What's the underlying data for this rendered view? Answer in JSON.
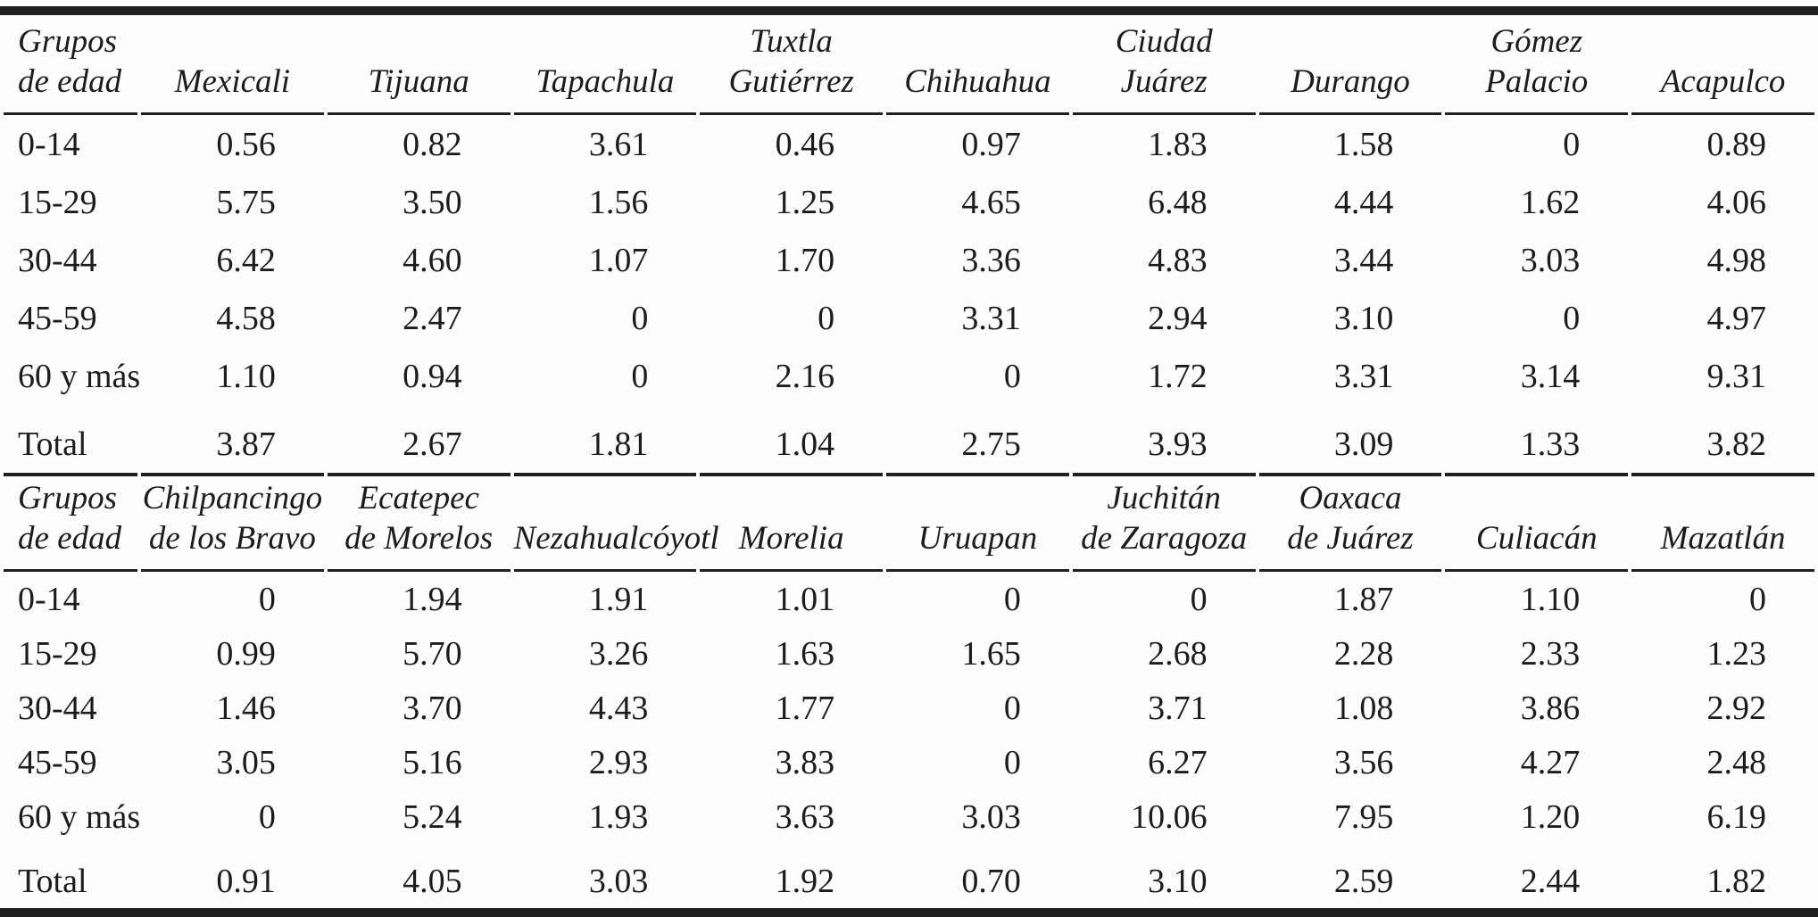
{
  "colors": {
    "ink": "#1c1c1c",
    "page_background": "#fdfdfd",
    "rule_color": "#202020"
  },
  "tables": [
    {
      "columns": [
        {
          "line1": "Grupos",
          "line2": "de edad"
        },
        {
          "line1": "",
          "line2": "Mexicali"
        },
        {
          "line1": "",
          "line2": "Tijuana"
        },
        {
          "line1": "",
          "line2": "Tapachula"
        },
        {
          "line1": "Tuxtla",
          "line2": "Gutiérrez"
        },
        {
          "line1": "",
          "line2": "Chihuahua"
        },
        {
          "line1": "Ciudad",
          "line2": "Juárez"
        },
        {
          "line1": "",
          "line2": "Durango"
        },
        {
          "line1": "Gómez",
          "line2": "Palacio"
        },
        {
          "line1": "",
          "line2": "Acapulco"
        }
      ],
      "rows": [
        {
          "label": "0-14",
          "total": false,
          "values": [
            "0.56",
            "0.82",
            "3.61",
            "0.46",
            "0.97",
            "1.83",
            "1.58",
            "0",
            "0.89"
          ]
        },
        {
          "label": "15-29",
          "total": false,
          "values": [
            "5.75",
            "3.50",
            "1.56",
            "1.25",
            "4.65",
            "6.48",
            "4.44",
            "1.62",
            "4.06"
          ]
        },
        {
          "label": "30-44",
          "total": false,
          "values": [
            "6.42",
            "4.60",
            "1.07",
            "1.70",
            "3.36",
            "4.83",
            "3.44",
            "3.03",
            "4.98"
          ]
        },
        {
          "label": "45-59",
          "total": false,
          "values": [
            "4.58",
            "2.47",
            "0",
            "0",
            "3.31",
            "2.94",
            "3.10",
            "0",
            "4.97"
          ]
        },
        {
          "label": "60 y más",
          "total": false,
          "values": [
            "1.10",
            "0.94",
            "0",
            "2.16",
            "0",
            "1.72",
            "3.31",
            "3.14",
            "9.31"
          ]
        },
        {
          "label": "Total",
          "total": true,
          "values": [
            "3.87",
            "2.67",
            "1.81",
            "1.04",
            "2.75",
            "3.93",
            "3.09",
            "1.33",
            "3.82"
          ]
        }
      ]
    },
    {
      "columns": [
        {
          "line1": "Grupos",
          "line2": "de edad"
        },
        {
          "line1": "Chilpancingo",
          "line2": "de los Bravo"
        },
        {
          "line1": "Ecatepec",
          "line2": "de Morelos"
        },
        {
          "line1": "",
          "line2": "Nezahualcóyotl"
        },
        {
          "line1": "",
          "line2": "Morelia"
        },
        {
          "line1": "",
          "line2": "Uruapan"
        },
        {
          "line1": "Juchitán",
          "line2": "de Zaragoza"
        },
        {
          "line1": "Oaxaca",
          "line2": "de Juárez"
        },
        {
          "line1": "",
          "line2": "Culiacán"
        },
        {
          "line1": "",
          "line2": "Mazatlán"
        }
      ],
      "rows": [
        {
          "label": "0-14",
          "total": false,
          "values": [
            "0",
            "1.94",
            "1.91",
            "1.01",
            "0",
            "0",
            "1.87",
            "1.10",
            "0"
          ]
        },
        {
          "label": "15-29",
          "total": false,
          "values": [
            "0.99",
            "5.70",
            "3.26",
            "1.63",
            "1.65",
            "2.68",
            "2.28",
            "2.33",
            "1.23"
          ]
        },
        {
          "label": "30-44",
          "total": false,
          "values": [
            "1.46",
            "3.70",
            "4.43",
            "1.77",
            "0",
            "3.71",
            "1.08",
            "3.86",
            "2.92"
          ]
        },
        {
          "label": "45-59",
          "total": false,
          "values": [
            "3.05",
            "5.16",
            "2.93",
            "3.83",
            "0",
            "6.27",
            "3.56",
            "4.27",
            "2.48"
          ]
        },
        {
          "label": "60 y más",
          "total": false,
          "values": [
            "0",
            "5.24",
            "1.93",
            "3.63",
            "3.03",
            "10.06",
            "7.95",
            "1.20",
            "6.19"
          ]
        },
        {
          "label": "Total",
          "total": true,
          "values": [
            "0.91",
            "4.05",
            "3.03",
            "1.92",
            "0.70",
            "3.10",
            "2.59",
            "2.44",
            "1.82"
          ]
        }
      ]
    }
  ]
}
